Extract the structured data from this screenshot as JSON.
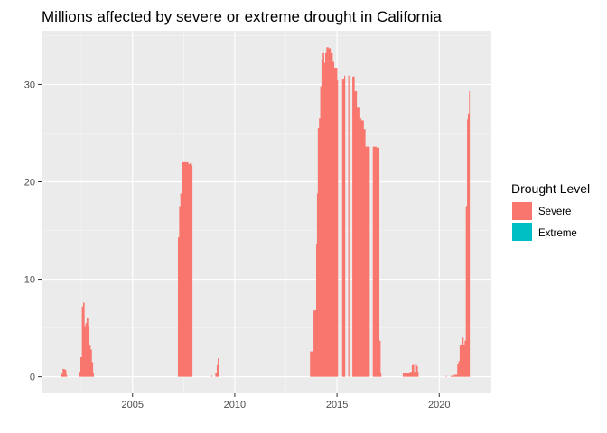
{
  "chart_data": {
    "type": "bar",
    "title": "Millions affected by severe or extreme drought in California",
    "xlabel": "",
    "ylabel": "",
    "xlim": [
      2000.55,
      2022.55
    ],
    "ylim": [
      -1.7,
      35.5
    ],
    "x_ticks": [
      2005,
      2010,
      2015,
      2020
    ],
    "x_tick_labels": [
      "2005",
      "2010",
      "2015",
      "2020"
    ],
    "y_ticks": [
      0,
      10,
      20,
      30
    ],
    "y_tick_labels": [
      "0",
      "10",
      "20",
      "30"
    ],
    "grid": true,
    "legend": {
      "title": "Drought Level",
      "position": "right",
      "entries": [
        {
          "label": "Severe",
          "color": "#F8766D"
        },
        {
          "label": "Extreme",
          "color": "#00BFC4"
        }
      ]
    },
    "colors": {
      "Severe": "#F8766D",
      "Extreme": "#00BFC4"
    },
    "series": [
      {
        "name": "Severe",
        "points": [
          [
            2001.48,
            0.3
          ],
          [
            2001.58,
            0.8
          ],
          [
            2001.68,
            0.7
          ],
          [
            2001.75,
            0.2
          ],
          [
            2002.38,
            0.5
          ],
          [
            2002.45,
            2.0
          ],
          [
            2002.52,
            7.2
          ],
          [
            2002.58,
            7.6
          ],
          [
            2002.64,
            5.2
          ],
          [
            2002.7,
            5.5
          ],
          [
            2002.76,
            6.0
          ],
          [
            2002.82,
            5.2
          ],
          [
            2002.88,
            3.2
          ],
          [
            2002.94,
            2.8
          ],
          [
            2003.0,
            1.5
          ],
          [
            2003.06,
            0.4
          ],
          [
            2007.22,
            14.3
          ],
          [
            2007.28,
            17.5
          ],
          [
            2007.34,
            18.8
          ],
          [
            2007.4,
            22.0
          ],
          [
            2007.55,
            22.0
          ],
          [
            2007.72,
            21.8
          ],
          [
            2007.8,
            21.9
          ],
          [
            2007.88,
            21.7
          ],
          [
            2008.85,
            0.1
          ],
          [
            2009.05,
            0.4
          ],
          [
            2009.12,
            1.2
          ],
          [
            2009.17,
            1.9
          ],
          [
            2013.68,
            2.6
          ],
          [
            2013.85,
            6.8
          ],
          [
            2013.98,
            13.6
          ],
          [
            2014.02,
            18.8
          ],
          [
            2014.06,
            25.5
          ],
          [
            2014.12,
            26.5
          ],
          [
            2014.18,
            29.8
          ],
          [
            2014.24,
            32.5
          ],
          [
            2014.3,
            33.2
          ],
          [
            2014.36,
            32.2
          ],
          [
            2014.42,
            33.2
          ],
          [
            2014.48,
            33.8
          ],
          [
            2014.58,
            33.7
          ],
          [
            2014.68,
            33.2
          ],
          [
            2014.78,
            32.3
          ],
          [
            2014.85,
            31.7
          ],
          [
            2015.0,
            30.4
          ],
          [
            2015.25,
            30.5
          ],
          [
            2015.35,
            30.9
          ],
          [
            2015.55,
            30.9
          ],
          [
            2015.75,
            30.8
          ],
          [
            2015.85,
            29.3
          ],
          [
            2015.96,
            27.6
          ],
          [
            2016.08,
            26.5
          ],
          [
            2016.18,
            26.3
          ],
          [
            2016.3,
            25.4
          ],
          [
            2016.38,
            23.6
          ],
          [
            2016.55,
            23.6
          ],
          [
            2016.75,
            23.6
          ],
          [
            2016.92,
            23.5
          ],
          [
            2017.06,
            3.7
          ],
          [
            2017.12,
            0.4
          ],
          [
            2018.22,
            0.4
          ],
          [
            2018.4,
            0.4
          ],
          [
            2018.55,
            0.5
          ],
          [
            2018.66,
            1.2
          ],
          [
            2018.76,
            0.5
          ],
          [
            2018.82,
            1.3
          ],
          [
            2018.88,
            1.1
          ],
          [
            2018.94,
            0.5
          ],
          [
            2020.32,
            0.1
          ],
          [
            2020.55,
            0.1
          ],
          [
            2020.72,
            0.2
          ],
          [
            2020.88,
            1.3
          ],
          [
            2020.94,
            1.6
          ],
          [
            2021.0,
            3.2
          ],
          [
            2021.06,
            3.3
          ],
          [
            2021.12,
            4.0
          ],
          [
            2021.18,
            3.2
          ],
          [
            2021.24,
            3.7
          ],
          [
            2021.3,
            17.5
          ],
          [
            2021.36,
            26.4
          ],
          [
            2021.4,
            27.0
          ],
          [
            2021.46,
            29.3
          ]
        ]
      },
      {
        "name": "Extreme",
        "points": []
      }
    ]
  }
}
